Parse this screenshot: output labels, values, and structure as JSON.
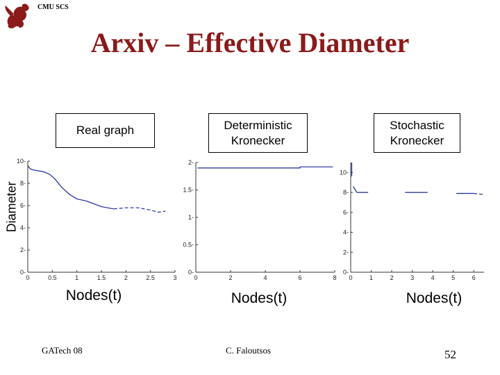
{
  "header": {
    "org": "CMU SCS",
    "logo_icon": "griffin-icon"
  },
  "title": "Arxiv – Effective Diameter",
  "ylabel": "Diameter",
  "footer": {
    "left": "GATech 08",
    "center": "C. Faloutsos",
    "page": "52"
  },
  "colors": {
    "title": "#8b1a1a",
    "line": "#1a2a9a"
  },
  "chart_data": [
    {
      "type": "line",
      "title": "Real graph",
      "xlabel": "Nodes(t)",
      "ylabel": "Diameter",
      "xlim": [
        0,
        3
      ],
      "ylim": [
        0,
        10
      ],
      "xticks": [
        "0",
        "0.5",
        "1",
        "1.5",
        "2",
        "2.5",
        "3"
      ],
      "yticks": [
        "0",
        "2",
        "4",
        "6",
        "8",
        "10"
      ],
      "series": [
        {
          "style": "solid",
          "x": [
            0,
            0.05,
            0.12,
            0.25,
            0.35,
            0.45,
            0.55,
            0.7,
            0.85,
            1.0,
            1.2,
            1.5,
            1.75
          ],
          "y": [
            9.6,
            9.3,
            9.2,
            9.1,
            9.0,
            8.8,
            8.4,
            7.6,
            7.0,
            6.6,
            6.4,
            5.9,
            5.7
          ]
        },
        {
          "style": "dashed",
          "x": [
            1.75,
            2.0,
            2.25,
            2.5,
            2.65,
            2.8
          ],
          "y": [
            5.7,
            5.8,
            5.8,
            5.6,
            5.4,
            5.5
          ]
        }
      ]
    },
    {
      "type": "line",
      "title": "Deterministic Kronecker",
      "xlabel": "Nodes(t)",
      "xlim": [
        0,
        8
      ],
      "ylim": [
        0,
        2
      ],
      "xticks": [
        "0",
        "2",
        "4",
        "6",
        "8"
      ],
      "yticks": [
        "0",
        "0.5",
        "1",
        "1.5",
        "2"
      ],
      "series": [
        {
          "style": "solid",
          "x": [
            0.1,
            6.0,
            6.0,
            7.9
          ],
          "y": [
            1.9,
            1.9,
            1.92,
            1.92
          ]
        }
      ]
    },
    {
      "type": "line",
      "title": "Stochastic Kronecker",
      "xlabel": "Nodes(t)",
      "xlim": [
        0,
        6.5
      ],
      "ylim": [
        0,
        11
      ],
      "xticks": [
        "0",
        "1",
        "2",
        "3",
        "4",
        "5",
        "6"
      ],
      "yticks": [
        "0",
        "2",
        "4",
        "6",
        "8",
        "10"
      ],
      "series": [
        {
          "style": "solid",
          "x": [
            0.05,
            0.05
          ],
          "y": [
            11,
            9.6
          ]
        },
        {
          "style": "solid",
          "x": [
            0.12,
            0.3,
            0.85
          ],
          "y": [
            8.6,
            8.0,
            8.0
          ]
        },
        {
          "style": "solid",
          "x": [
            2.65,
            3.75
          ],
          "y": [
            8.0,
            8.0
          ]
        },
        {
          "style": "solid",
          "x": [
            5.15,
            6.0
          ],
          "y": [
            7.9,
            7.9
          ]
        },
        {
          "style": "dashed",
          "x": [
            6.0,
            6.45
          ],
          "y": [
            7.9,
            7.8
          ]
        }
      ]
    }
  ]
}
